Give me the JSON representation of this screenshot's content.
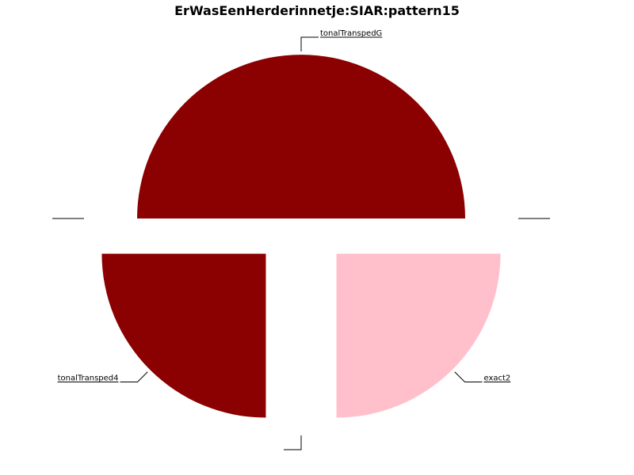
{
  "chart_data": {
    "type": "pie",
    "title": "ErWasEenHerderinnetje:SIAR:pattern15",
    "slices": [
      {
        "label": "tonalTranspedG",
        "value": 2,
        "color": "#8b0000",
        "exploded": false
      },
      {
        "label": "",
        "value": 0,
        "color": "#8b0000",
        "exploded": true
      },
      {
        "label": "tonalTransped4",
        "value": 1,
        "color": "#8b0000",
        "exploded": true
      },
      {
        "label": "",
        "value": 0,
        "color": "#8b0000",
        "exploded": true
      },
      {
        "label": "exact2",
        "value": 1,
        "color": "#ffc0cb",
        "exploded": true
      },
      {
        "label": "",
        "value": 0,
        "color": "#8b0000",
        "exploded": true
      }
    ]
  }
}
